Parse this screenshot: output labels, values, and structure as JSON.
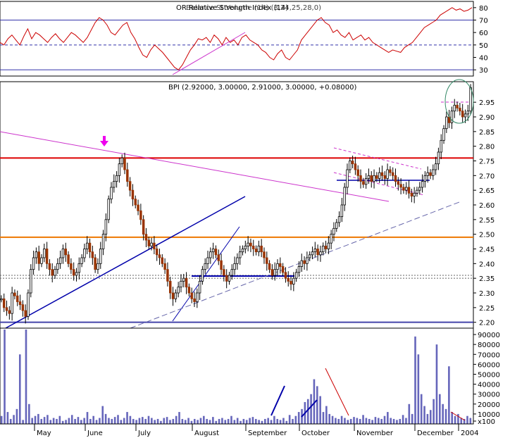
{
  "chart_data": [
    {
      "panel": "rsi",
      "type": "line",
      "title": "OR Relative Strength Index (14)",
      "overlapping_text": "Balance St Volume (14) (3,24,25,28,0)",
      "y_ticks": [
        "80",
        "70",
        "60",
        "50",
        "40",
        "30"
      ],
      "ylim": [
        25,
        85
      ],
      "horizontal_lines": [
        70,
        50,
        30
      ],
      "series_color": "#cc0000",
      "values": [
        52,
        50,
        55,
        58,
        54,
        50,
        57,
        63,
        55,
        60,
        58,
        55,
        52,
        56,
        59,
        55,
        52,
        56,
        60,
        58,
        55,
        52,
        56,
        62,
        68,
        72,
        70,
        66,
        60,
        58,
        62,
        66,
        68,
        60,
        55,
        48,
        42,
        40,
        46,
        50,
        47,
        44,
        40,
        36,
        32,
        30,
        34,
        40,
        46,
        50,
        55,
        54,
        56,
        52,
        58,
        55,
        50,
        56,
        52,
        54,
        50,
        56,
        58,
        54,
        52,
        50,
        46,
        44,
        40,
        38,
        43,
        46,
        40,
        38,
        42,
        46,
        54,
        58,
        62,
        66,
        70,
        72,
        68,
        66,
        60,
        62,
        58,
        56,
        60,
        54,
        56,
        58,
        54,
        56,
        52,
        50,
        48,
        46,
        44,
        46,
        45,
        44,
        48,
        50,
        52,
        56,
        60,
        64,
        66,
        68,
        70,
        74,
        76,
        78,
        80,
        78,
        79,
        77,
        78,
        80
      ]
    },
    {
      "panel": "price",
      "type": "candlestick",
      "title": "BPI (2.92000, 3.00000, 2.91000, 3.00000, +0.08000)",
      "y_ticks": [
        "2.95",
        "2.90",
        "2.85",
        "2.80",
        "2.75",
        "2.70",
        "2.65",
        "2.60",
        "2.55",
        "2.50",
        "2.45",
        "2.40",
        "2.35",
        "2.30",
        "2.25",
        "2.20"
      ],
      "ylim": [
        2.18,
        3.02
      ],
      "up_color": "#ffffff",
      "down_color": "#993300",
      "horizontal_lines": [
        {
          "value": 2.76,
          "color": "#dd0000"
        },
        {
          "value": 2.49,
          "color": "#ee7700"
        },
        {
          "value": 2.2,
          "color": "#4444aa"
        },
        {
          "value": 2.36,
          "color": "#666666"
        },
        {
          "value": 2.35,
          "color": "#666666"
        }
      ],
      "closes": [
        2.28,
        2.25,
        2.24,
        2.23,
        2.3,
        2.29,
        2.27,
        2.26,
        2.24,
        2.22,
        2.3,
        2.38,
        2.42,
        2.44,
        2.4,
        2.42,
        2.45,
        2.4,
        2.38,
        2.36,
        2.38,
        2.4,
        2.42,
        2.45,
        2.43,
        2.4,
        2.38,
        2.36,
        2.37,
        2.4,
        2.42,
        2.45,
        2.47,
        2.44,
        2.42,
        2.38,
        2.4,
        2.45,
        2.5,
        2.55,
        2.62,
        2.66,
        2.68,
        2.7,
        2.74,
        2.76,
        2.72,
        2.68,
        2.65,
        2.62,
        2.6,
        2.58,
        2.55,
        2.5,
        2.48,
        2.46,
        2.47,
        2.45,
        2.43,
        2.42,
        2.4,
        2.38,
        2.34,
        2.3,
        2.28,
        2.3,
        2.32,
        2.34,
        2.35,
        2.32,
        2.3,
        2.28,
        2.27,
        2.3,
        2.34,
        2.38,
        2.4,
        2.42,
        2.44,
        2.45,
        2.43,
        2.41,
        2.38,
        2.36,
        2.34,
        2.36,
        2.38,
        2.4,
        2.42,
        2.44,
        2.45,
        2.46,
        2.47,
        2.46,
        2.45,
        2.44,
        2.46,
        2.44,
        2.42,
        2.4,
        2.38,
        2.36,
        2.38,
        2.4,
        2.39,
        2.37,
        2.35,
        2.34,
        2.33,
        2.35,
        2.37,
        2.39,
        2.41,
        2.4,
        2.42,
        2.43,
        2.44,
        2.45,
        2.43,
        2.44,
        2.46,
        2.45,
        2.47,
        2.5,
        2.52,
        2.54,
        2.56,
        2.6,
        2.66,
        2.72,
        2.75,
        2.74,
        2.72,
        2.7,
        2.68,
        2.67,
        2.69,
        2.7,
        2.68,
        2.7,
        2.69,
        2.71,
        2.7,
        2.69,
        2.72,
        2.71,
        2.7,
        2.68,
        2.67,
        2.66,
        2.65,
        2.66,
        2.64,
        2.63,
        2.64,
        2.65,
        2.66,
        2.68,
        2.7,
        2.71,
        2.7,
        2.72,
        2.74,
        2.78,
        2.82,
        2.86,
        2.9,
        2.88,
        2.92,
        2.94,
        2.93,
        2.92,
        2.9,
        2.91,
        2.92,
        3.0
      ]
    },
    {
      "panel": "volume",
      "type": "bar",
      "y_ticks": [
        "90000",
        "80000",
        "70000",
        "60000",
        "50000",
        "40000",
        "30000",
        "20000",
        "10000",
        "x100"
      ],
      "ylim": [
        0,
        95000
      ],
      "bar_color": "#6666bb",
      "values": [
        8000,
        95000,
        12000,
        5000,
        9000,
        15000,
        70000,
        4000,
        95000,
        20000,
        6000,
        8000,
        10000,
        5000,
        7000,
        9000,
        4000,
        6000,
        5000,
        8000,
        3000,
        4000,
        6000,
        9000,
        5000,
        7000,
        4000,
        6000,
        12000,
        5000,
        8000,
        4000,
        6000,
        18000,
        10000,
        6000,
        5000,
        7000,
        9000,
        4000,
        6000,
        12000,
        8000,
        5000,
        4000,
        6000,
        7000,
        5000,
        8000,
        6000,
        4000,
        5000,
        3000,
        6000,
        7000,
        4000,
        5000,
        8000,
        12000,
        5000,
        4000,
        6000,
        3000,
        5000,
        4000,
        6000,
        8000,
        5000,
        4000,
        7000,
        3000,
        5000,
        6000,
        4000,
        5000,
        8000,
        4000,
        6000,
        3000,
        5000,
        4000,
        6000,
        7000,
        5000,
        4000,
        3000,
        5000,
        6000,
        4000,
        8000,
        5000,
        4000,
        6000,
        3000,
        9000,
        5000,
        8000,
        12000,
        15000,
        22000,
        25000,
        30000,
        45000,
        38000,
        28000,
        12000,
        18000,
        10000,
        8000,
        6000,
        5000,
        8000,
        6000,
        4000,
        5000,
        7000,
        6000,
        5000,
        9000,
        6000,
        5000,
        4000,
        7000,
        6000,
        5000,
        8000,
        12000,
        6000,
        5000,
        4000,
        5000,
        9000,
        6000,
        20000,
        10000,
        88000,
        70000,
        30000,
        18000,
        10000,
        14000,
        25000,
        80000,
        30000,
        20000,
        15000,
        58000,
        12000,
        8000,
        10000,
        6000,
        5000,
        8000,
        6000
      ],
      "annotations": []
    }
  ],
  "x_axis": {
    "months": [
      "May",
      "June",
      "July",
      "August",
      "September",
      "October",
      "November",
      "December",
      "2004"
    ]
  }
}
